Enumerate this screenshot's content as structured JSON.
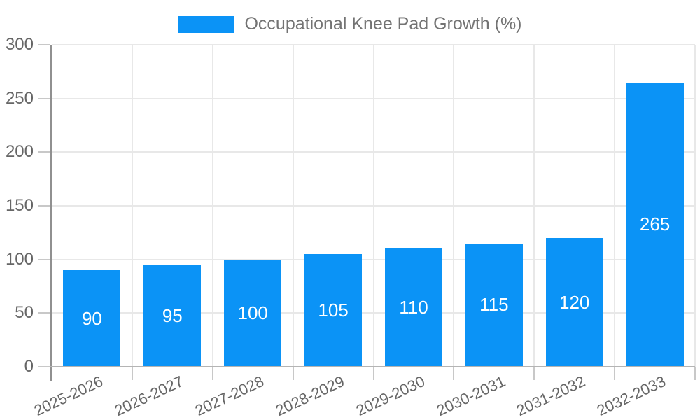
{
  "legend": {
    "label": "Occupational Knee Pad Growth (%)",
    "position": "top"
  },
  "chart_data": {
    "type": "bar",
    "title": "Occupational Knee Pad Growth (%)",
    "categories": [
      "2025-2026",
      "2026-2027",
      "2027-2028",
      "2028-2029",
      "2029-2030",
      "2030-2031",
      "2031-2032",
      "2032-2033"
    ],
    "values": [
      90,
      95,
      100,
      105,
      110,
      115,
      120,
      265
    ],
    "xlabel": "",
    "ylabel": "",
    "ylim": [
      0,
      300
    ],
    "y_ticks": [
      0,
      50,
      100,
      150,
      200,
      250,
      300
    ],
    "grid": true,
    "legend_position": "top",
    "bar_color": "#0b93f6",
    "value_label_color": "#ffffff",
    "axis_text_color": "#666666",
    "grid_color": "#e8e8e8",
    "y_axis_line_color": "#909090",
    "x_axis_line_color": "#b4b4b4",
    "tick_mark_color": "#c8c8c8"
  }
}
